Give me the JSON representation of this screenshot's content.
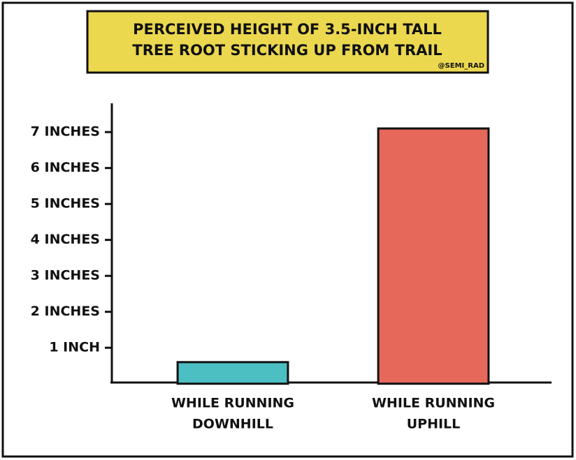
{
  "chart_data": {
    "type": "bar",
    "title": [
      "PERCEIVED HEIGHT OF 3.5-INCH TALL",
      "TREE ROOT STICKING UP FROM TRAIL"
    ],
    "credit": "@SEMI_RAD",
    "categories": [
      [
        "WHILE RUNNING",
        "DOWNHILL"
      ],
      [
        "WHILE RUNNING",
        "UPHILL"
      ]
    ],
    "values": [
      0.6,
      7.1
    ],
    "colors": [
      "#4bbfc2",
      "#e5685a"
    ],
    "ylim": [
      0,
      7.8
    ],
    "yticks": [
      {
        "value": 1,
        "label": "1 INCH"
      },
      {
        "value": 2,
        "label": "2 INCHES"
      },
      {
        "value": 3,
        "label": "3 INCHES"
      },
      {
        "value": 4,
        "label": "4 INCHES"
      },
      {
        "value": 5,
        "label": "5 INCHES"
      },
      {
        "value": 6,
        "label": "6 INCHES"
      },
      {
        "value": 7,
        "label": "7 INCHES"
      }
    ],
    "grid": false
  }
}
